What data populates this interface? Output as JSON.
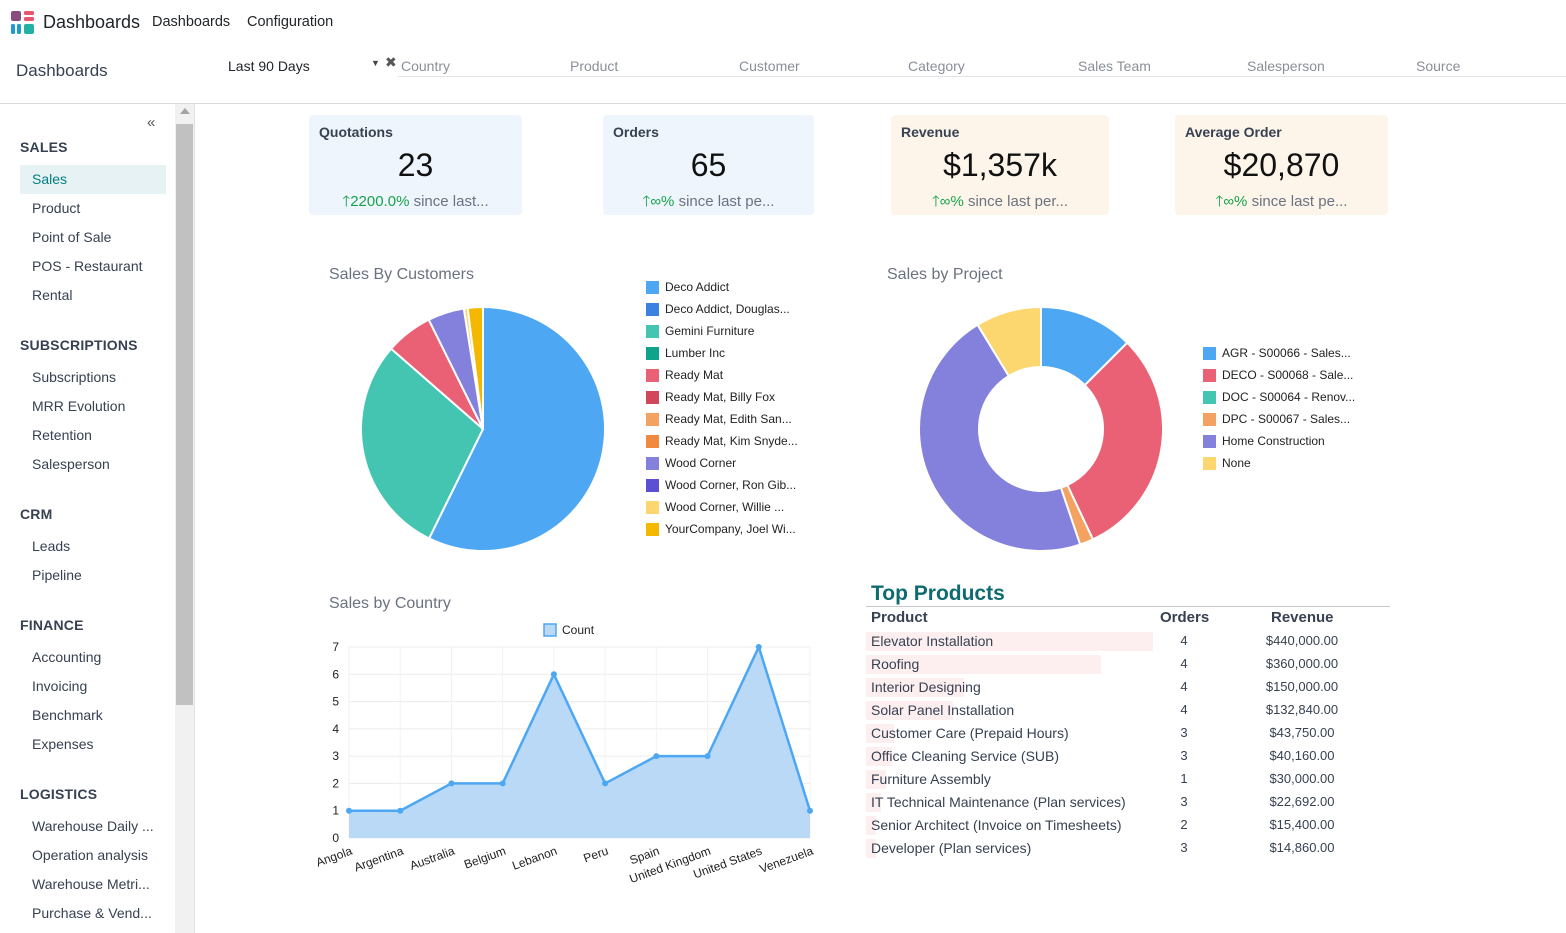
{
  "topbar": {
    "app_name": "Dashboards",
    "menu": [
      "Dashboards",
      "Configuration"
    ]
  },
  "breadcrumb": "Dashboards",
  "filters": {
    "period": "Last 90 Days",
    "fields": [
      "Country",
      "Product",
      "Customer",
      "Category",
      "Sales Team",
      "Salesperson",
      "Source"
    ]
  },
  "sidebar": {
    "sections": [
      {
        "title": "SALES",
        "items": [
          "Sales",
          "Product",
          "Point of Sale",
          "POS - Restaurant",
          "Rental"
        ]
      },
      {
        "title": "SUBSCRIPTIONS",
        "items": [
          "Subscriptions",
          "MRR Evolution",
          "Retention",
          "Salesperson"
        ]
      },
      {
        "title": "CRM",
        "items": [
          "Leads",
          "Pipeline"
        ]
      },
      {
        "title": "FINANCE",
        "items": [
          "Accounting",
          "Invoicing",
          "Benchmark",
          "Expenses"
        ]
      },
      {
        "title": "LOGISTICS",
        "items": [
          "Warehouse Daily ...",
          "Operation analysis",
          "Warehouse Metri...",
          "Purchase & Vend..."
        ]
      }
    ],
    "active_item": "Sales"
  },
  "kpis": [
    {
      "title": "Quotations",
      "value": "23",
      "delta": "2200.0%",
      "suffix": "since last..."
    },
    {
      "title": "Orders",
      "value": "65",
      "delta": "∞%",
      "suffix": "since last pe..."
    },
    {
      "title": "Revenue",
      "value": "$1,357k",
      "delta": "∞%",
      "suffix": "since last per..."
    },
    {
      "title": "Average Order",
      "value": "$20,870",
      "delta": "∞%",
      "suffix": "since last pe..."
    }
  ],
  "colors": {
    "accent": "#017e84",
    "kpi_up": "#16a34a"
  },
  "chart_data": [
    {
      "type": "pie",
      "title": "Sales By Customers",
      "labels": [
        "Deco Addict",
        "Deco Addict, Douglas...",
        "Gemini Furniture",
        "Lumber Inc",
        "Ready Mat",
        "Ready Mat, Billy Fox",
        "Ready Mat, Edith San...",
        "Ready Mat, Kim Snyde...",
        "Wood Corner",
        "Wood Corner, Ron Gib...",
        "Wood Corner, Willie ...",
        "YourCompany, Joel Wi..."
      ],
      "colors": [
        "#4ea7f2",
        "#3b82e0",
        "#43c5b1",
        "#0ea38a",
        "#ea6175",
        "#d1465b",
        "#f4a261",
        "#ef8a3e",
        "#8481dd",
        "#5b4fd4",
        "#fcd770",
        "#f5b800"
      ],
      "values": [
        57,
        0,
        29,
        0,
        6.2,
        0,
        0,
        0,
        4.8,
        0,
        0.5,
        2
      ],
      "legend": "right"
    },
    {
      "type": "pie",
      "title": "Sales by Project",
      "labels": [
        "AGR - S00066 - Sales...",
        "DECO - S00068 - Sale...",
        "DOC - S00064 - Renov...",
        "DPC - S00067 - Sales...",
        "Home Construction",
        "None"
      ],
      "colors": [
        "#4ea7f2",
        "#ea6175",
        "#43c5b1",
        "#f4a261",
        "#8481dd",
        "#fcd770"
      ],
      "values": [
        12.5,
        30.5,
        0,
        1.8,
        46.5,
        8.7
      ],
      "donut": true,
      "legend": "right"
    },
    {
      "type": "area",
      "title": "Sales by Country",
      "categories": [
        "Angola",
        "Argentina",
        "Australia",
        "Belgium",
        "Lebanon",
        "Peru",
        "Spain",
        "United Kingdom",
        "United States",
        "Venezuela"
      ],
      "series": [
        {
          "name": "Count",
          "values": [
            1,
            1,
            2,
            2,
            6,
            2,
            3,
            3,
            7,
            1
          ]
        }
      ],
      "ylim": [
        0,
        7
      ],
      "yticks": [
        0,
        1,
        2,
        3,
        4,
        5,
        6,
        7
      ],
      "legend": "top-center",
      "grid": true,
      "color": "#4ea7f2"
    },
    {
      "type": "table",
      "title": "Top Products",
      "columns": [
        "Product",
        "Orders",
        "Revenue"
      ],
      "rows": [
        {
          "product": "Elevator Installation",
          "orders": "4",
          "revenue": "$440,000.00",
          "share": 1.0
        },
        {
          "product": "Roofing",
          "orders": "4",
          "revenue": "$360,000.00",
          "share": 0.818
        },
        {
          "product": "Interior Designing",
          "orders": "4",
          "revenue": "$150,000.00",
          "share": 0.341
        },
        {
          "product": "Solar Panel Installation",
          "orders": "4",
          "revenue": "$132,840.00",
          "share": 0.302
        },
        {
          "product": "Customer Care (Prepaid Hours)",
          "orders": "3",
          "revenue": "$43,750.00",
          "share": 0.099
        },
        {
          "product": "Office Cleaning Service (SUB)",
          "orders": "3",
          "revenue": "$40,160.00",
          "share": 0.091
        },
        {
          "product": "Furniture Assembly",
          "orders": "1",
          "revenue": "$30,000.00",
          "share": 0.068
        },
        {
          "product": "IT Technical Maintenance (Plan services)",
          "orders": "3",
          "revenue": "$22,692.00",
          "share": 0.052
        },
        {
          "product": "Senior Architect (Invoice on Timesheets)",
          "orders": "2",
          "revenue": "$15,400.00",
          "share": 0.035
        },
        {
          "product": "Developer (Plan services)",
          "orders": "3",
          "revenue": "$14,860.00",
          "share": 0.034
        }
      ]
    }
  ]
}
